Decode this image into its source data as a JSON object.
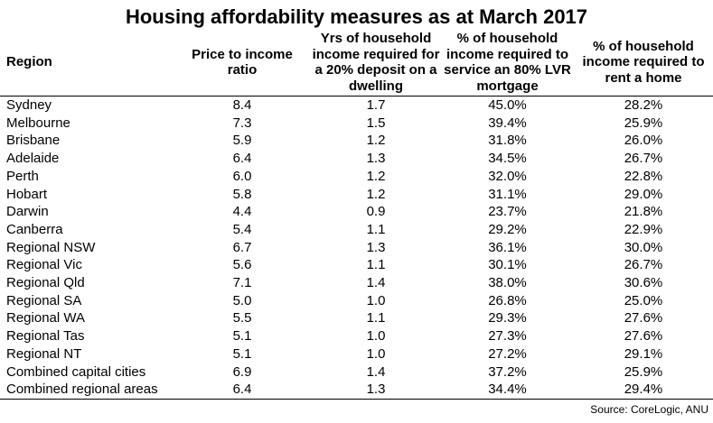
{
  "chart_data": {
    "type": "table",
    "title": "Housing affordability measures as at March 2017",
    "source": "Source: CoreLogic, ANU",
    "background": "#ffffff",
    "text_color": "#000000",
    "rule_color": "#000000",
    "columns": [
      "Region",
      "Price to income\nratio",
      "Yrs of household\nincome required for\na 20% deposit on a\ndwelling",
      "% of household\nincome required to\nservice an 80% LVR\nmortgage",
      "% of household\nincome required to\nrent a home"
    ],
    "rows": [
      [
        "Sydney",
        "8.4",
        "1.7",
        "45.0%",
        "28.2%"
      ],
      [
        "Melbourne",
        "7.3",
        "1.5",
        "39.4%",
        "25.9%"
      ],
      [
        "Brisbane",
        "5.9",
        "1.2",
        "31.8%",
        "26.0%"
      ],
      [
        "Adelaide",
        "6.4",
        "1.3",
        "34.5%",
        "26.7%"
      ],
      [
        "Perth",
        "6.0",
        "1.2",
        "32.0%",
        "22.8%"
      ],
      [
        "Hobart",
        "5.8",
        "1.2",
        "31.1%",
        "29.0%"
      ],
      [
        "Darwin",
        "4.4",
        "0.9",
        "23.7%",
        "21.8%"
      ],
      [
        "Canberra",
        "5.4",
        "1.1",
        "29.2%",
        "22.9%"
      ],
      [
        "Regional NSW",
        "6.7",
        "1.3",
        "36.1%",
        "30.0%"
      ],
      [
        "Regional Vic",
        "5.6",
        "1.1",
        "30.1%",
        "26.7%"
      ],
      [
        "Regional Qld",
        "7.1",
        "1.4",
        "38.0%",
        "30.6%"
      ],
      [
        "Regional SA",
        "5.0",
        "1.0",
        "26.8%",
        "25.0%"
      ],
      [
        "Regional WA",
        "5.5",
        "1.1",
        "29.3%",
        "27.6%"
      ],
      [
        "Regional Tas",
        "5.1",
        "1.0",
        "27.3%",
        "27.6%"
      ],
      [
        "Regional NT",
        "5.1",
        "1.0",
        "27.2%",
        "29.1%"
      ],
      [
        "Combined capital cities",
        "6.9",
        "1.4",
        "37.2%",
        "25.9%"
      ],
      [
        "Combined regional areas",
        "6.4",
        "1.3",
        "34.4%",
        "29.4%"
      ]
    ]
  }
}
